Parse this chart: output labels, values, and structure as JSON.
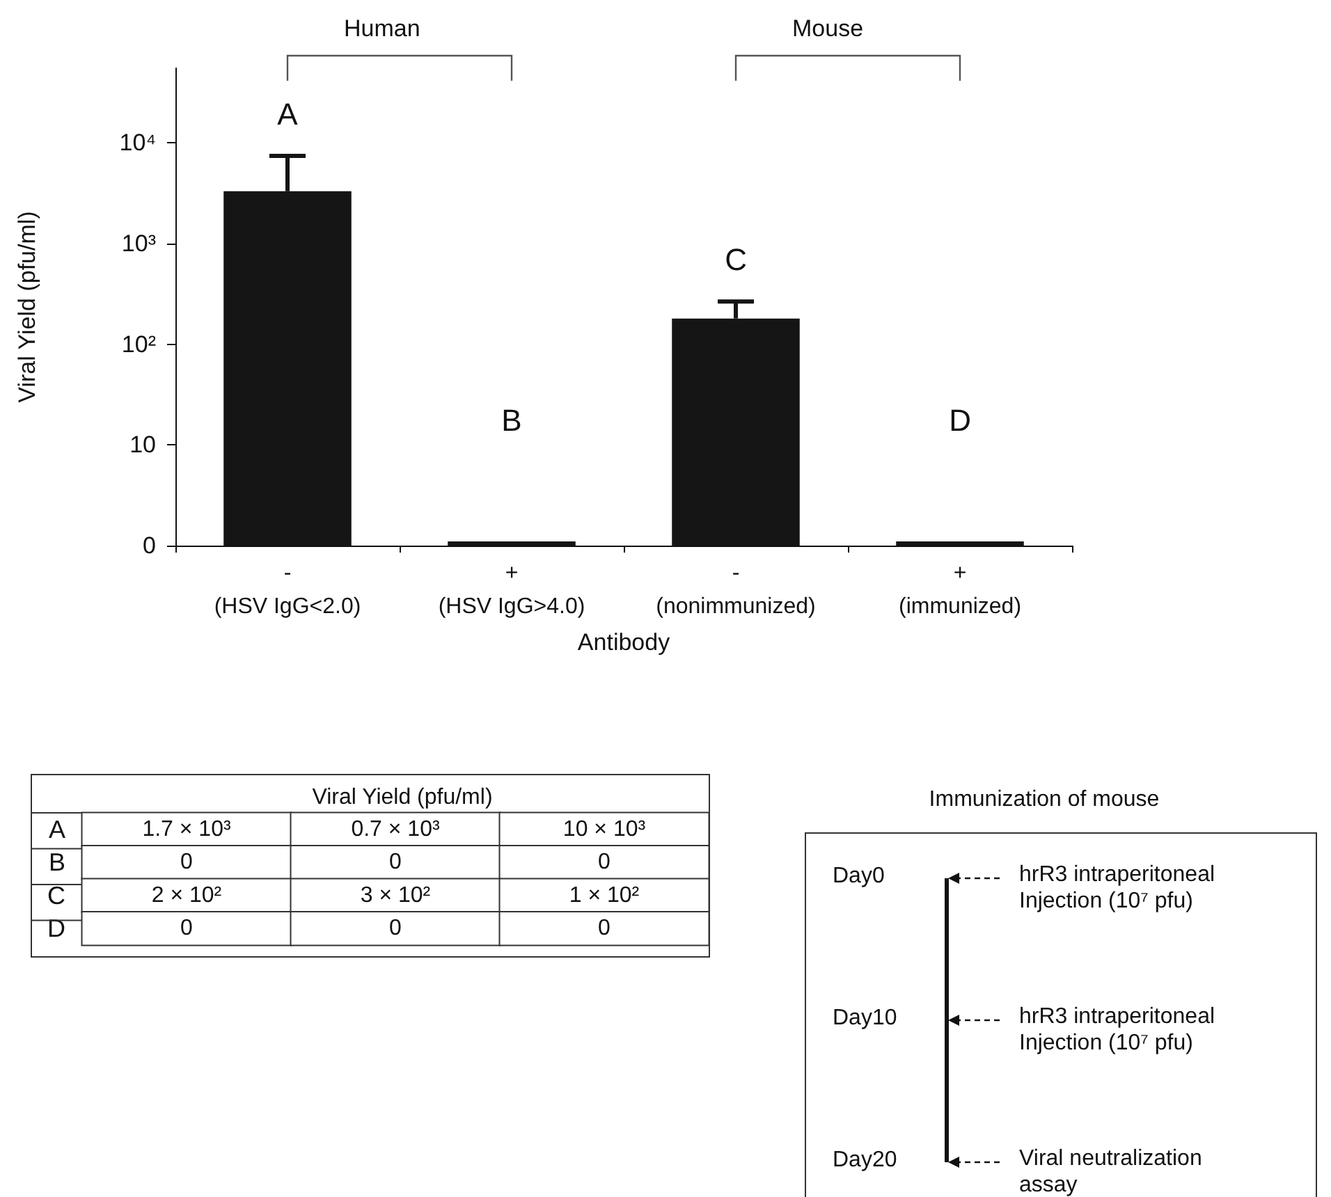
{
  "chart_data": [
    {
      "type": "bar",
      "xlabel": "Antibody",
      "ylabel": "Viral Yield (pfu/ml)",
      "categories": [
        "-\n(HSV IgG<2.0)",
        "+\n(HSV IgG>4.0)",
        "-\n(nonimmunized)",
        "+\n(immunized)"
      ],
      "values": [
        3300,
        0,
        180,
        0
      ],
      "errors": [
        [
          3300,
          7400
        ],
        null,
        [
          180,
          265
        ],
        null
      ],
      "color": "#151515",
      "log": "y",
      "ylim": [
        0,
        55000
      ],
      "yticks": [
        0,
        10,
        {
          "value": 100,
          "label": "10²"
        },
        {
          "value": 1000,
          "label": "10³"
        },
        {
          "value": 10000,
          "label": "10⁴"
        }
      ],
      "annotations": [
        "Human",
        "Mouse",
        "A",
        "B",
        "C",
        "D"
      ]
    },
    {
      "type": "other",
      "title": "Viral Yield (pfu/ml)",
      "y_categories": [
        "A",
        "B",
        "C",
        "D"
      ],
      "cell_labels": [
        [
          "1.7 × 10³",
          "0.7 × 10³",
          "10 × 10³"
        ],
        [
          "0",
          "0",
          "0"
        ],
        [
          "2 × 10²",
          "3 × 10²",
          "1 × 10²"
        ],
        [
          "0",
          "0",
          "0"
        ]
      ]
    },
    {
      "type": "other",
      "title": "Immunization of mouse",
      "categories": [
        "Day0",
        "Day10",
        "Day20"
      ],
      "annotations": [
        "hrR3 intraperitoneal\nInjection (10⁷ pfu)",
        "hrR3 intraperitoneal\nInjection (10⁷ pfu)",
        "Viral neutralization\nassay"
      ]
    }
  ]
}
